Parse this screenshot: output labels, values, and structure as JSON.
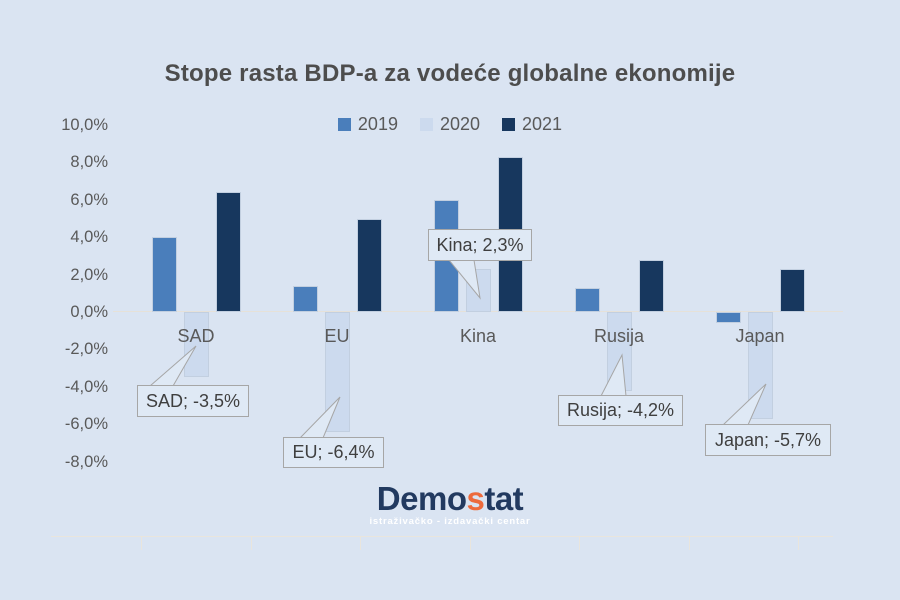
{
  "title": "Stope rasta BDP-a za vodeće globalne ekonomije",
  "chart_data": {
    "type": "bar",
    "title": "Stope rasta BDP-a za vodeće globalne ekonomije",
    "categories": [
      "SAD",
      "EU",
      "Kina",
      "Rusija",
      "Japan"
    ],
    "series": [
      {
        "name": "2019",
        "color": "#4a7ebb",
        "values": [
          4.0,
          1.4,
          6.0,
          1.3,
          -0.6
        ]
      },
      {
        "name": "2020",
        "color": "#ccdaee",
        "values": [
          -3.5,
          -6.4,
          2.3,
          -4.2,
          -5.7
        ]
      },
      {
        "name": "2021",
        "color": "#17375e",
        "values": [
          6.4,
          5.0,
          8.3,
          2.8,
          2.3
        ]
      }
    ],
    "y_axis": {
      "ticks": [
        "10,0%",
        "8,0%",
        "6,0%",
        "4,0%",
        "2,0%",
        "0,0%",
        "-2,0%",
        "-4,0%",
        "-6,0%",
        "-8,0%"
      ],
      "max": 10,
      "min": -8,
      "step": 2,
      "unit": "%"
    },
    "data_labels": [
      {
        "series": "2020",
        "category": "SAD",
        "text": "SAD; -3,5%"
      },
      {
        "series": "2020",
        "category": "EU",
        "text": "EU; -6,4%"
      },
      {
        "series": "2020",
        "category": "Kina",
        "text": "Kina; 2,3%"
      },
      {
        "series": "2020",
        "category": "Rusija",
        "text": "Rusija; -4,2%"
      },
      {
        "series": "2020",
        "category": "Japan",
        "text": "Japan; -5,7%"
      }
    ],
    "legend_position": "top",
    "grid": false
  },
  "logo": {
    "part_navy_1": "Demo",
    "part_orange": "s",
    "part_navy_2": "tat",
    "tagline": "istraživačko - izdavački  centar"
  },
  "colors": {
    "background": "#dae4f2",
    "title_text": "#4d4d4d",
    "axis_text": "#595959",
    "zero_line": "#e6e1d8",
    "bottom_axis": "#e9e5dd",
    "bar_border": "#c2cfe0",
    "callout_bg": "#dfe9f5",
    "callout_border": "#a6a6a6",
    "callout_text": "#3f3f3f",
    "logo_navy": "#223a60",
    "logo_orange": "#ed6a3c"
  }
}
